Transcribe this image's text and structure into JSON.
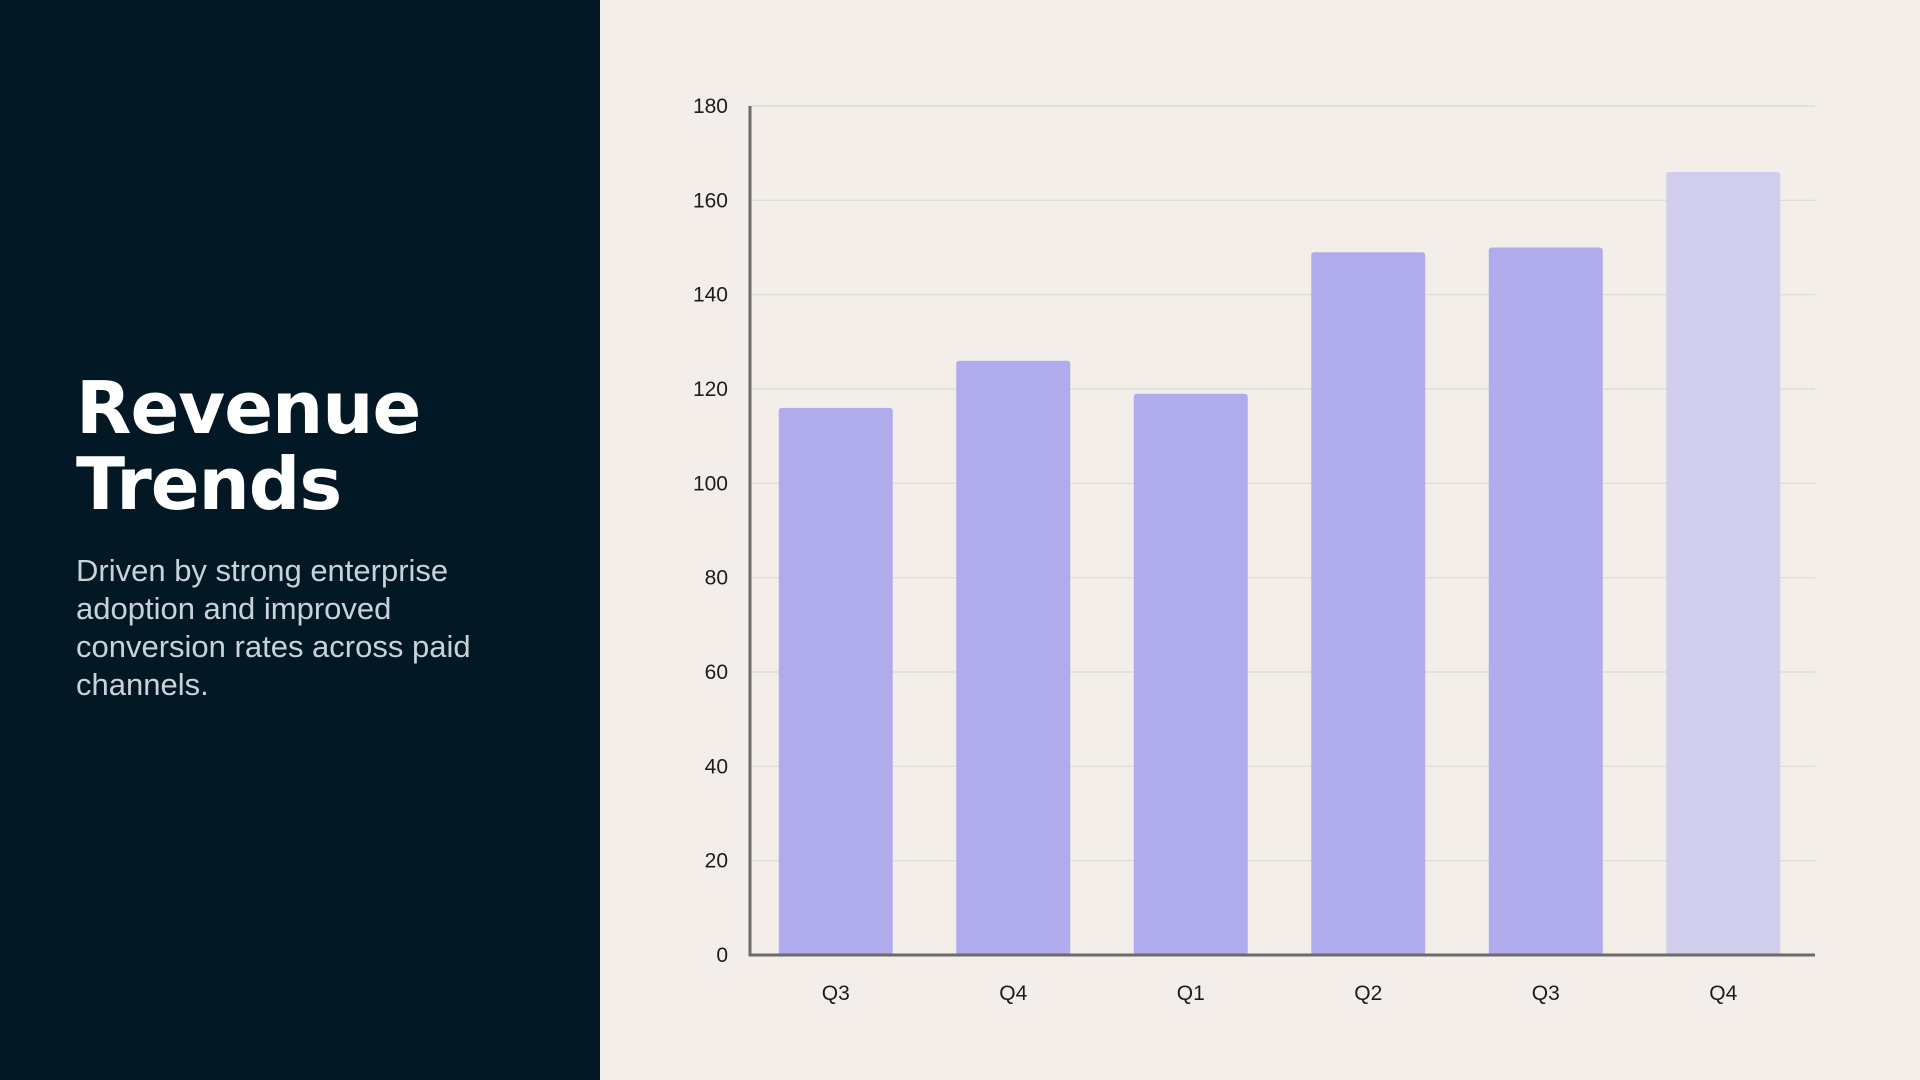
{
  "slide": {
    "title": "Revenue Trends",
    "subtitle": "Driven by strong enterprise adoption and improved conversion rates across paid channels."
  },
  "colors": {
    "left_panel_bg": "#021824",
    "right_panel_bg": "#f3eeea",
    "bar": "#afabec",
    "bar_highlight": "#d1cdec",
    "axis": "#6b6b6b",
    "grid": "#dcd8d4"
  },
  "chart_data": {
    "type": "bar",
    "categories": [
      "Q3",
      "Q4",
      "Q1",
      "Q2",
      "Q3",
      "Q4"
    ],
    "values": [
      116,
      126,
      119,
      149,
      150,
      166
    ],
    "title": "",
    "xlabel": "",
    "ylabel": "",
    "ylim": [
      0,
      180
    ],
    "yticks": [
      0,
      20,
      40,
      60,
      80,
      100,
      120,
      140,
      160,
      180
    ],
    "grid": true,
    "legend": "none",
    "last_bar_lighter": true
  }
}
